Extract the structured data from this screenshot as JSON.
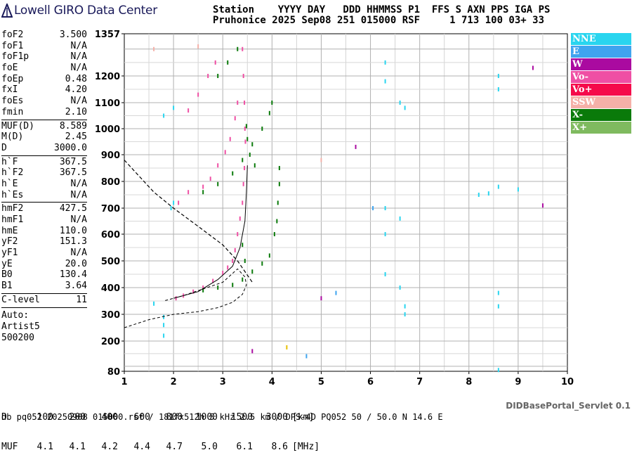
{
  "brand": {
    "name": "Lowell GIRO Data Center",
    "icon": "lowell-logo-icon"
  },
  "header": {
    "line1": "Station    YYYY DAY   DDD HHMMSS P1  FFS S AXN PPS IGA PS",
    "line2": "Pruhonice 2025 Sep08 251 015000 RSF     1 713 100 03+ 33"
  },
  "params_groups": [
    [
      {
        "label": "foF2",
        "value": "3.500"
      },
      {
        "label": "foF1",
        "value": "N/A"
      },
      {
        "label": "foF1p",
        "value": "N/A"
      },
      {
        "label": "foE",
        "value": "N/A"
      },
      {
        "label": "foEp",
        "value": "0.48"
      },
      {
        "label": "fxI",
        "value": "4.20"
      },
      {
        "label": "foEs",
        "value": "N/A"
      },
      {
        "label": "fmin",
        "value": "2.10"
      }
    ],
    [
      {
        "label": "MUF(D)",
        "value": "8.589"
      },
      {
        "label": "M(D)",
        "value": "2.45"
      },
      {
        "label": "D",
        "value": "3000.0"
      }
    ],
    [
      {
        "label": "h`F",
        "value": "367.5"
      },
      {
        "label": "h`F2",
        "value": "367.5"
      },
      {
        "label": "h`E",
        "value": "N/A"
      },
      {
        "label": "h`Es",
        "value": "N/A"
      }
    ],
    [
      {
        "label": "hmF2",
        "value": "427.5"
      },
      {
        "label": "hmF1",
        "value": "N/A"
      },
      {
        "label": "hmE",
        "value": "110.0"
      },
      {
        "label": "yF2",
        "value": "151.3"
      },
      {
        "label": "yF1",
        "value": "N/A"
      },
      {
        "label": "yE",
        "value": "20.0"
      },
      {
        "label": "B0",
        "value": "130.4"
      },
      {
        "label": "B1",
        "value": "3.64"
      }
    ],
    [
      {
        "label": "C-level",
        "value": "11"
      }
    ]
  ],
  "auto": {
    "label": "Auto:",
    "artist": "Artist5",
    "code": "500200"
  },
  "legend": [
    {
      "label": "NNE",
      "color": "#29d5ef"
    },
    {
      "label": "E",
      "color": "#3fa4ef"
    },
    {
      "label": "W",
      "color": "#aa0aa0"
    },
    {
      "label": "Vo-",
      "color": "#ef4fa4"
    },
    {
      "label": "Vo+",
      "color": "#f50a4a"
    },
    {
      "label": "SSW",
      "color": "#f5b0a8"
    },
    {
      "label": "X-",
      "color": "#0a7a0a"
    },
    {
      "label": "X+",
      "color": "#7fba5f"
    }
  ],
  "footer": {
    "d_label": "D",
    "d_values": [
      "100",
      "200",
      "400",
      "600",
      "800",
      "1000",
      "1500",
      "3000"
    ],
    "d_unit": "[km]",
    "muf_label": "MUF",
    "muf_values": [
      "4.1",
      "4.1",
      "4.2",
      "4.4",
      "4.7",
      "5.0",
      "6.1",
      "8.6"
    ],
    "muf_unit": "[MHz]",
    "servlet": "DIDBasePortal_Servlet 0.1",
    "bottom": "db pq052 20250908 015000.rsf / 181fx512h 5 kHz 2.5 km / DPS-4D PQ052 50 / 50.0 N 14.6 E"
  },
  "chart_data": {
    "type": "scatter",
    "x_ticks": [
      "1",
      "2",
      "3",
      "4",
      "5",
      "6",
      "7",
      "8",
      "9",
      "10"
    ],
    "y_ticks": [
      "80",
      "200",
      "300",
      "400",
      "500",
      "600",
      "700",
      "800",
      "900",
      "1000",
      "1100",
      "1200",
      "1357"
    ],
    "x_range": [
      1,
      10
    ],
    "y_range": [
      80,
      1357
    ],
    "grid": true,
    "legend_position": "right",
    "profile_curve": [
      [
        1.0,
        250
      ],
      [
        1.5,
        280
      ],
      [
        2.0,
        300
      ],
      [
        2.5,
        310
      ],
      [
        2.9,
        325
      ],
      [
        3.2,
        345
      ],
      [
        3.4,
        375
      ],
      [
        3.48,
        410
      ],
      [
        3.45,
        440
      ],
      [
        3.3,
        470
      ],
      [
        3.0,
        420
      ],
      [
        2.6,
        395
      ],
      [
        2.2,
        370
      ],
      [
        1.8,
        350
      ]
    ],
    "true_height_curve": [
      [
        2.0,
        360
      ],
      [
        2.5,
        385
      ],
      [
        2.9,
        430
      ],
      [
        3.2,
        480
      ],
      [
        3.35,
        550
      ],
      [
        3.45,
        650
      ],
      [
        3.48,
        760
      ],
      [
        3.5,
        860
      ]
    ],
    "muf_curve": [
      [
        1.0,
        880
      ],
      [
        1.3,
        820
      ],
      [
        1.6,
        760
      ],
      [
        2.0,
        700
      ],
      [
        2.5,
        630
      ],
      [
        3.0,
        560
      ],
      [
        3.3,
        500
      ],
      [
        3.6,
        420
      ]
    ],
    "series": [
      {
        "color": "#ef4fa4",
        "points": [
          [
            2.05,
            360
          ],
          [
            2.2,
            370
          ],
          [
            2.4,
            385
          ],
          [
            2.6,
            400
          ],
          [
            2.8,
            425
          ],
          [
            3.0,
            455
          ],
          [
            3.1,
            475
          ],
          [
            3.2,
            500
          ],
          [
            3.25,
            540
          ],
          [
            3.3,
            600
          ],
          [
            3.35,
            660
          ],
          [
            3.4,
            720
          ],
          [
            3.42,
            790
          ],
          [
            3.44,
            850
          ],
          [
            2.6,
            780
          ],
          [
            2.75,
            810
          ],
          [
            2.9,
            860
          ],
          [
            3.05,
            910
          ],
          [
            3.15,
            960
          ],
          [
            3.25,
            1040
          ],
          [
            3.3,
            1100
          ],
          [
            2.1,
            720
          ],
          [
            2.3,
            760
          ],
          [
            2.3,
            1070
          ],
          [
            2.5,
            1130
          ],
          [
            2.7,
            1200
          ],
          [
            2.85,
            1250
          ],
          [
            3.4,
            1300
          ],
          [
            3.42,
            1200
          ],
          [
            3.44,
            1100
          ],
          [
            3.45,
            1000
          ],
          [
            3.46,
            950
          ]
        ]
      },
      {
        "color": "#0a7a0a",
        "points": [
          [
            2.6,
            390
          ],
          [
            2.9,
            400
          ],
          [
            3.2,
            410
          ],
          [
            3.4,
            430
          ],
          [
            3.6,
            460
          ],
          [
            3.8,
            490
          ],
          [
            3.95,
            520
          ],
          [
            4.05,
            600
          ],
          [
            4.1,
            650
          ],
          [
            4.12,
            720
          ],
          [
            4.15,
            790
          ],
          [
            4.15,
            850
          ],
          [
            2.6,
            760
          ],
          [
            2.9,
            790
          ],
          [
            3.2,
            830
          ],
          [
            3.4,
            880
          ],
          [
            3.6,
            940
          ],
          [
            3.8,
            1000
          ],
          [
            3.95,
            1060
          ],
          [
            4.0,
            1100
          ],
          [
            2.9,
            1200
          ],
          [
            3.1,
            1250
          ],
          [
            3.3,
            1300
          ],
          [
            3.48,
            1010
          ],
          [
            3.5,
            960
          ],
          [
            3.55,
            900
          ],
          [
            3.65,
            860
          ],
          [
            3.4,
            560
          ],
          [
            3.45,
            500
          ]
        ]
      },
      {
        "color": "#29d5ef",
        "points": [
          [
            1.8,
            220
          ],
          [
            1.8,
            260
          ],
          [
            1.8,
            290
          ],
          [
            1.6,
            340
          ],
          [
            1.95,
            700
          ],
          [
            2.0,
            720
          ],
          [
            1.8,
            1050
          ],
          [
            2.0,
            1080
          ],
          [
            6.3,
            1180
          ],
          [
            6.3,
            1250
          ],
          [
            6.3,
            700
          ],
          [
            6.3,
            600
          ],
          [
            6.3,
            450
          ],
          [
            6.6,
            1100
          ],
          [
            6.7,
            1080
          ],
          [
            6.6,
            660
          ],
          [
            6.6,
            400
          ],
          [
            6.7,
            330
          ],
          [
            6.7,
            300
          ],
          [
            8.6,
            1200
          ],
          [
            8.6,
            1150
          ],
          [
            8.6,
            780
          ],
          [
            8.6,
            380
          ],
          [
            8.6,
            330
          ],
          [
            8.2,
            750
          ],
          [
            8.4,
            755
          ],
          [
            9.0,
            770
          ],
          [
            8.6,
            85
          ]
        ]
      },
      {
        "color": "#3fa4ef",
        "points": [
          [
            4.7,
            140
          ],
          [
            5.3,
            380
          ],
          [
            6.05,
            700
          ]
        ]
      },
      {
        "color": "#aa0aa0",
        "points": [
          [
            3.6,
            160
          ],
          [
            5.0,
            360
          ],
          [
            5.7,
            930
          ],
          [
            9.5,
            710
          ],
          [
            9.3,
            1230
          ]
        ]
      },
      {
        "color": "#f5b0a8",
        "points": [
          [
            1.6,
            1300
          ],
          [
            2.5,
            1310
          ],
          [
            5.0,
            880
          ]
        ]
      },
      {
        "color": "#e8c000",
        "points": [
          [
            4.3,
            175
          ]
        ]
      }
    ]
  }
}
